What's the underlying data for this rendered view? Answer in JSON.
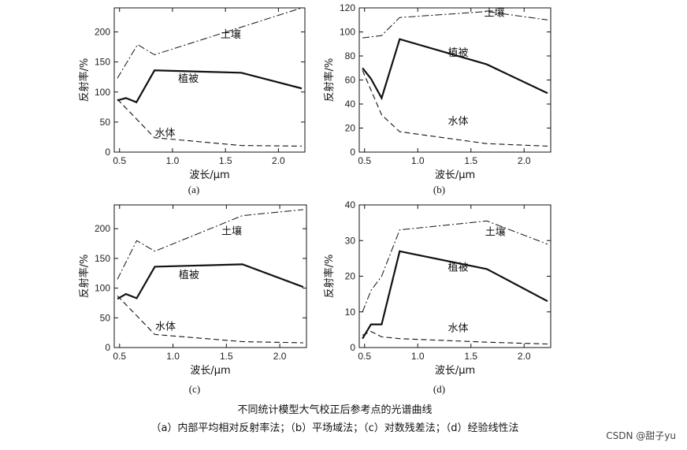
{
  "caption": {
    "title": "不同统计模型大气校正后参考点的光谱曲线",
    "subtitle": "（a）内部平均相对反射率法；（b）平场域法；（c）对数残差法；（d）经验线性法"
  },
  "watermark": "CSDN @甜子yu",
  "colors": {
    "axis": "#111111",
    "line": "#111111",
    "background": "#ffffff"
  },
  "chart_data": [
    {
      "type": "line",
      "panel_label": "(a)",
      "xlabel": "波长/μm",
      "ylabel": "反射率/%",
      "xlim": [
        0.45,
        2.25
      ],
      "ylim": [
        0,
        240
      ],
      "xticks": [
        "0.5",
        "1.0",
        "1.5",
        "2.0"
      ],
      "xtick_values": [
        0.5,
        1.0,
        1.5,
        2.0
      ],
      "yticks": [
        "0",
        "50",
        "100",
        "150",
        "200"
      ],
      "ytick_values": [
        0,
        50,
        100,
        150,
        200
      ],
      "series": [
        {
          "name": "土壤",
          "style": "dashdot",
          "x": [
            0.48,
            0.67,
            0.83,
            2.22
          ],
          "y": [
            123,
            179,
            162,
            240
          ]
        },
        {
          "name": "植被",
          "style": "solid",
          "x": [
            0.48,
            0.56,
            0.66,
            0.83,
            1.65,
            2.22
          ],
          "y": [
            86,
            90,
            83,
            136,
            132,
            106
          ]
        },
        {
          "name": "水体",
          "style": "dashed",
          "x": [
            0.48,
            0.83,
            1.65,
            2.22
          ],
          "y": [
            88,
            24,
            11,
            10
          ]
        }
      ],
      "annotations": [
        {
          "text": "土壤",
          "x": 1.55,
          "y": 190
        },
        {
          "text": "植被",
          "x": 1.15,
          "y": 117
        },
        {
          "text": "水体",
          "x": 0.93,
          "y": 26
        }
      ]
    },
    {
      "type": "line",
      "panel_label": "(b)",
      "xlabel": "波长/μm",
      "ylabel": "反射率/%",
      "xlim": [
        0.45,
        2.25
      ],
      "ylim": [
        0,
        120
      ],
      "xticks": [
        "0.5",
        "1.0",
        "1.5",
        "2.0"
      ],
      "xtick_values": [
        0.5,
        1.0,
        1.5,
        2.0
      ],
      "yticks": [
        "0",
        "20",
        "40",
        "60",
        "80",
        "100",
        "120"
      ],
      "ytick_values": [
        0,
        20,
        40,
        60,
        80,
        100,
        120
      ],
      "series": [
        {
          "name": "土壤",
          "style": "dashdot",
          "x": [
            0.48,
            0.66,
            0.83,
            1.65,
            2.22
          ],
          "y": [
            95,
            97,
            112,
            117,
            110
          ]
        },
        {
          "name": "植被",
          "style": "solid",
          "x": [
            0.48,
            0.56,
            0.66,
            0.83,
            1.65,
            2.22
          ],
          "y": [
            70,
            61,
            45,
            94,
            73,
            49
          ]
        },
        {
          "name": "水体",
          "style": "dashed",
          "x": [
            0.48,
            0.66,
            0.83,
            1.65,
            2.22
          ],
          "y": [
            68,
            31,
            17,
            7,
            5
          ]
        }
      ],
      "annotations": [
        {
          "text": "土壤",
          "x": 1.72,
          "y": 113
        },
        {
          "text": "植被",
          "x": 1.38,
          "y": 80
        },
        {
          "text": "水体",
          "x": 1.38,
          "y": 23
        }
      ]
    },
    {
      "type": "line",
      "panel_label": "(c)",
      "xlabel": "波长/μm",
      "ylabel": "反射率/%",
      "xlim": [
        0.45,
        2.25
      ],
      "ylim": [
        0,
        240
      ],
      "xticks": [
        "0.5",
        "1.0",
        "1.5",
        "2.0"
      ],
      "xtick_values": [
        0.5,
        1.0,
        1.5,
        2.0
      ],
      "yticks": [
        "0",
        "50",
        "100",
        "150",
        "200"
      ],
      "ytick_values": [
        0,
        50,
        100,
        150,
        200
      ],
      "series": [
        {
          "name": "土壤",
          "style": "dashdot",
          "x": [
            0.48,
            0.66,
            0.83,
            1.65,
            2.22
          ],
          "y": [
            115,
            180,
            162,
            222,
            232
          ]
        },
        {
          "name": "植被",
          "style": "solid",
          "x": [
            0.48,
            0.56,
            0.66,
            0.83,
            1.65,
            2.22
          ],
          "y": [
            82,
            90,
            83,
            136,
            140,
            102
          ]
        },
        {
          "name": "水体",
          "style": "dashed",
          "x": [
            0.48,
            0.83,
            1.65,
            2.22
          ],
          "y": [
            87,
            22,
            10,
            8
          ]
        }
      ],
      "annotations": [
        {
          "text": "土壤",
          "x": 1.55,
          "y": 190
        },
        {
          "text": "植被",
          "x": 1.15,
          "y": 117
        },
        {
          "text": "水体",
          "x": 0.93,
          "y": 30
        }
      ]
    },
    {
      "type": "line",
      "panel_label": "(d)",
      "xlabel": "波长/μm",
      "ylabel": "反射率/%",
      "xlim": [
        0.45,
        2.25
      ],
      "ylim": [
        0,
        40
      ],
      "xticks": [
        "0.5",
        "1.0",
        "1.5",
        "2.0"
      ],
      "xtick_values": [
        0.5,
        1.0,
        1.5,
        2.0
      ],
      "yticks": [
        "0",
        "10",
        "20",
        "30",
        "40"
      ],
      "ytick_values": [
        0,
        10,
        20,
        30,
        40
      ],
      "series": [
        {
          "name": "土壤",
          "style": "dashdot",
          "x": [
            0.48,
            0.56,
            0.66,
            0.83,
            1.65,
            2.22
          ],
          "y": [
            10,
            16,
            20,
            33,
            35.5,
            29
          ]
        },
        {
          "name": "植被",
          "style": "solid",
          "x": [
            0.48,
            0.56,
            0.59,
            0.66,
            0.83,
            1.65,
            2.22
          ],
          "y": [
            2.5,
            6.5,
            6.5,
            6.5,
            27,
            22,
            13
          ]
        },
        {
          "name": "水体",
          "style": "dashed",
          "x": [
            0.48,
            0.56,
            0.66,
            0.83,
            1.65,
            2.22
          ],
          "y": [
            3.5,
            4.5,
            3.0,
            2.5,
            1.5,
            1.0
          ]
        }
      ],
      "annotations": [
        {
          "text": "土壤",
          "x": 1.73,
          "y": 31.5
        },
        {
          "text": "植被",
          "x": 1.38,
          "y": 21.5
        },
        {
          "text": "水体",
          "x": 1.38,
          "y": 4.5
        }
      ]
    }
  ]
}
